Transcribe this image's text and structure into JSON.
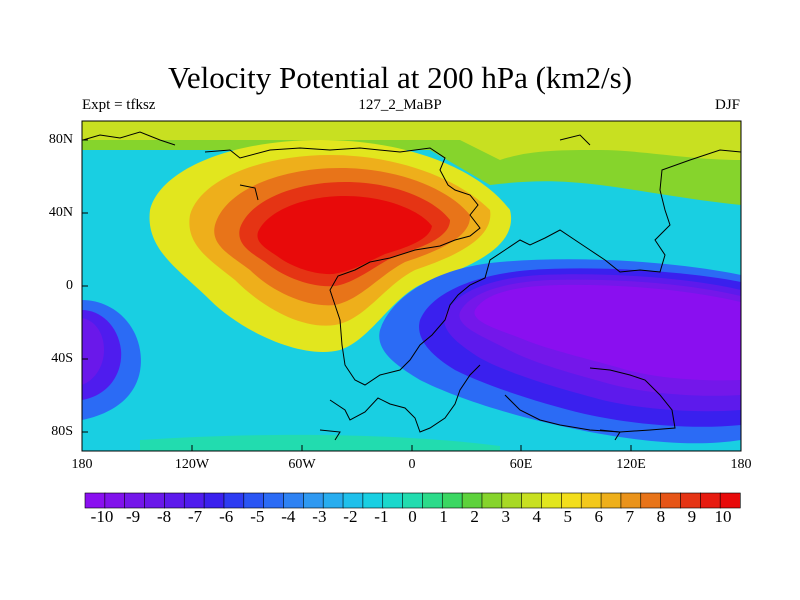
{
  "title": "Velocity Potential at 200 hPa (km2/s)",
  "subtitle_left": "Expt = tfksz",
  "subtitle_center": "127_2_MaBP",
  "subtitle_right": "DJF",
  "lat_labels": [
    "80N",
    "40N",
    "0",
    "40S",
    "80S"
  ],
  "lon_labels": [
    "180",
    "120W",
    "60W",
    "0",
    "60E",
    "120E",
    "180"
  ],
  "colorbar": {
    "labels": [
      "-10",
      "-9",
      "-8",
      "-7",
      "-6",
      "-5",
      "-4",
      "-3",
      "-2",
      "-1",
      "0",
      "1",
      "2",
      "3",
      "4",
      "5",
      "6",
      "7",
      "8",
      "9",
      "10"
    ],
    "levels_min": -10,
    "levels_max": 10,
    "level_step": 0.5,
    "colors": [
      "#8a0ff0",
      "#8112ec",
      "#7417ea",
      "#6a18ea",
      "#5d1aec",
      "#4f1cee",
      "#3a20ee",
      "#2d3bf2",
      "#2a55f4",
      "#2b6bf5",
      "#2e82f3",
      "#2f99f1",
      "#28adef",
      "#1fc0eb",
      "#19cfe2",
      "#1bd8cc",
      "#22dcaf",
      "#2cdb8a",
      "#3bd762",
      "#5ed23c",
      "#86d42c",
      "#a8d925",
      "#c8e021",
      "#e2e61e",
      "#f3de1c",
      "#f3c81b",
      "#eeaf1b",
      "#ea931b",
      "#e87419",
      "#e65517",
      "#e53414",
      "#e71b10",
      "#e80a0a"
    ]
  },
  "chart_data": {
    "type": "heatmap",
    "variable": "Velocity Potential at 200 hPa",
    "units": "km2/s",
    "experiment": "tfksz",
    "run": "127_2_MaBP",
    "season": "DJF",
    "x_range": [
      -180,
      180
    ],
    "y_range": [
      -90,
      90
    ],
    "features": [
      {
        "name": "positive maximum",
        "lon": -45,
        "lat": 28,
        "value": 10
      },
      {
        "name": "negative minimum",
        "lon": 100,
        "lat": -18,
        "value": -10
      },
      {
        "name": "western pacific minimum",
        "lon": -178,
        "lat": -20,
        "value": -9
      }
    ]
  }
}
